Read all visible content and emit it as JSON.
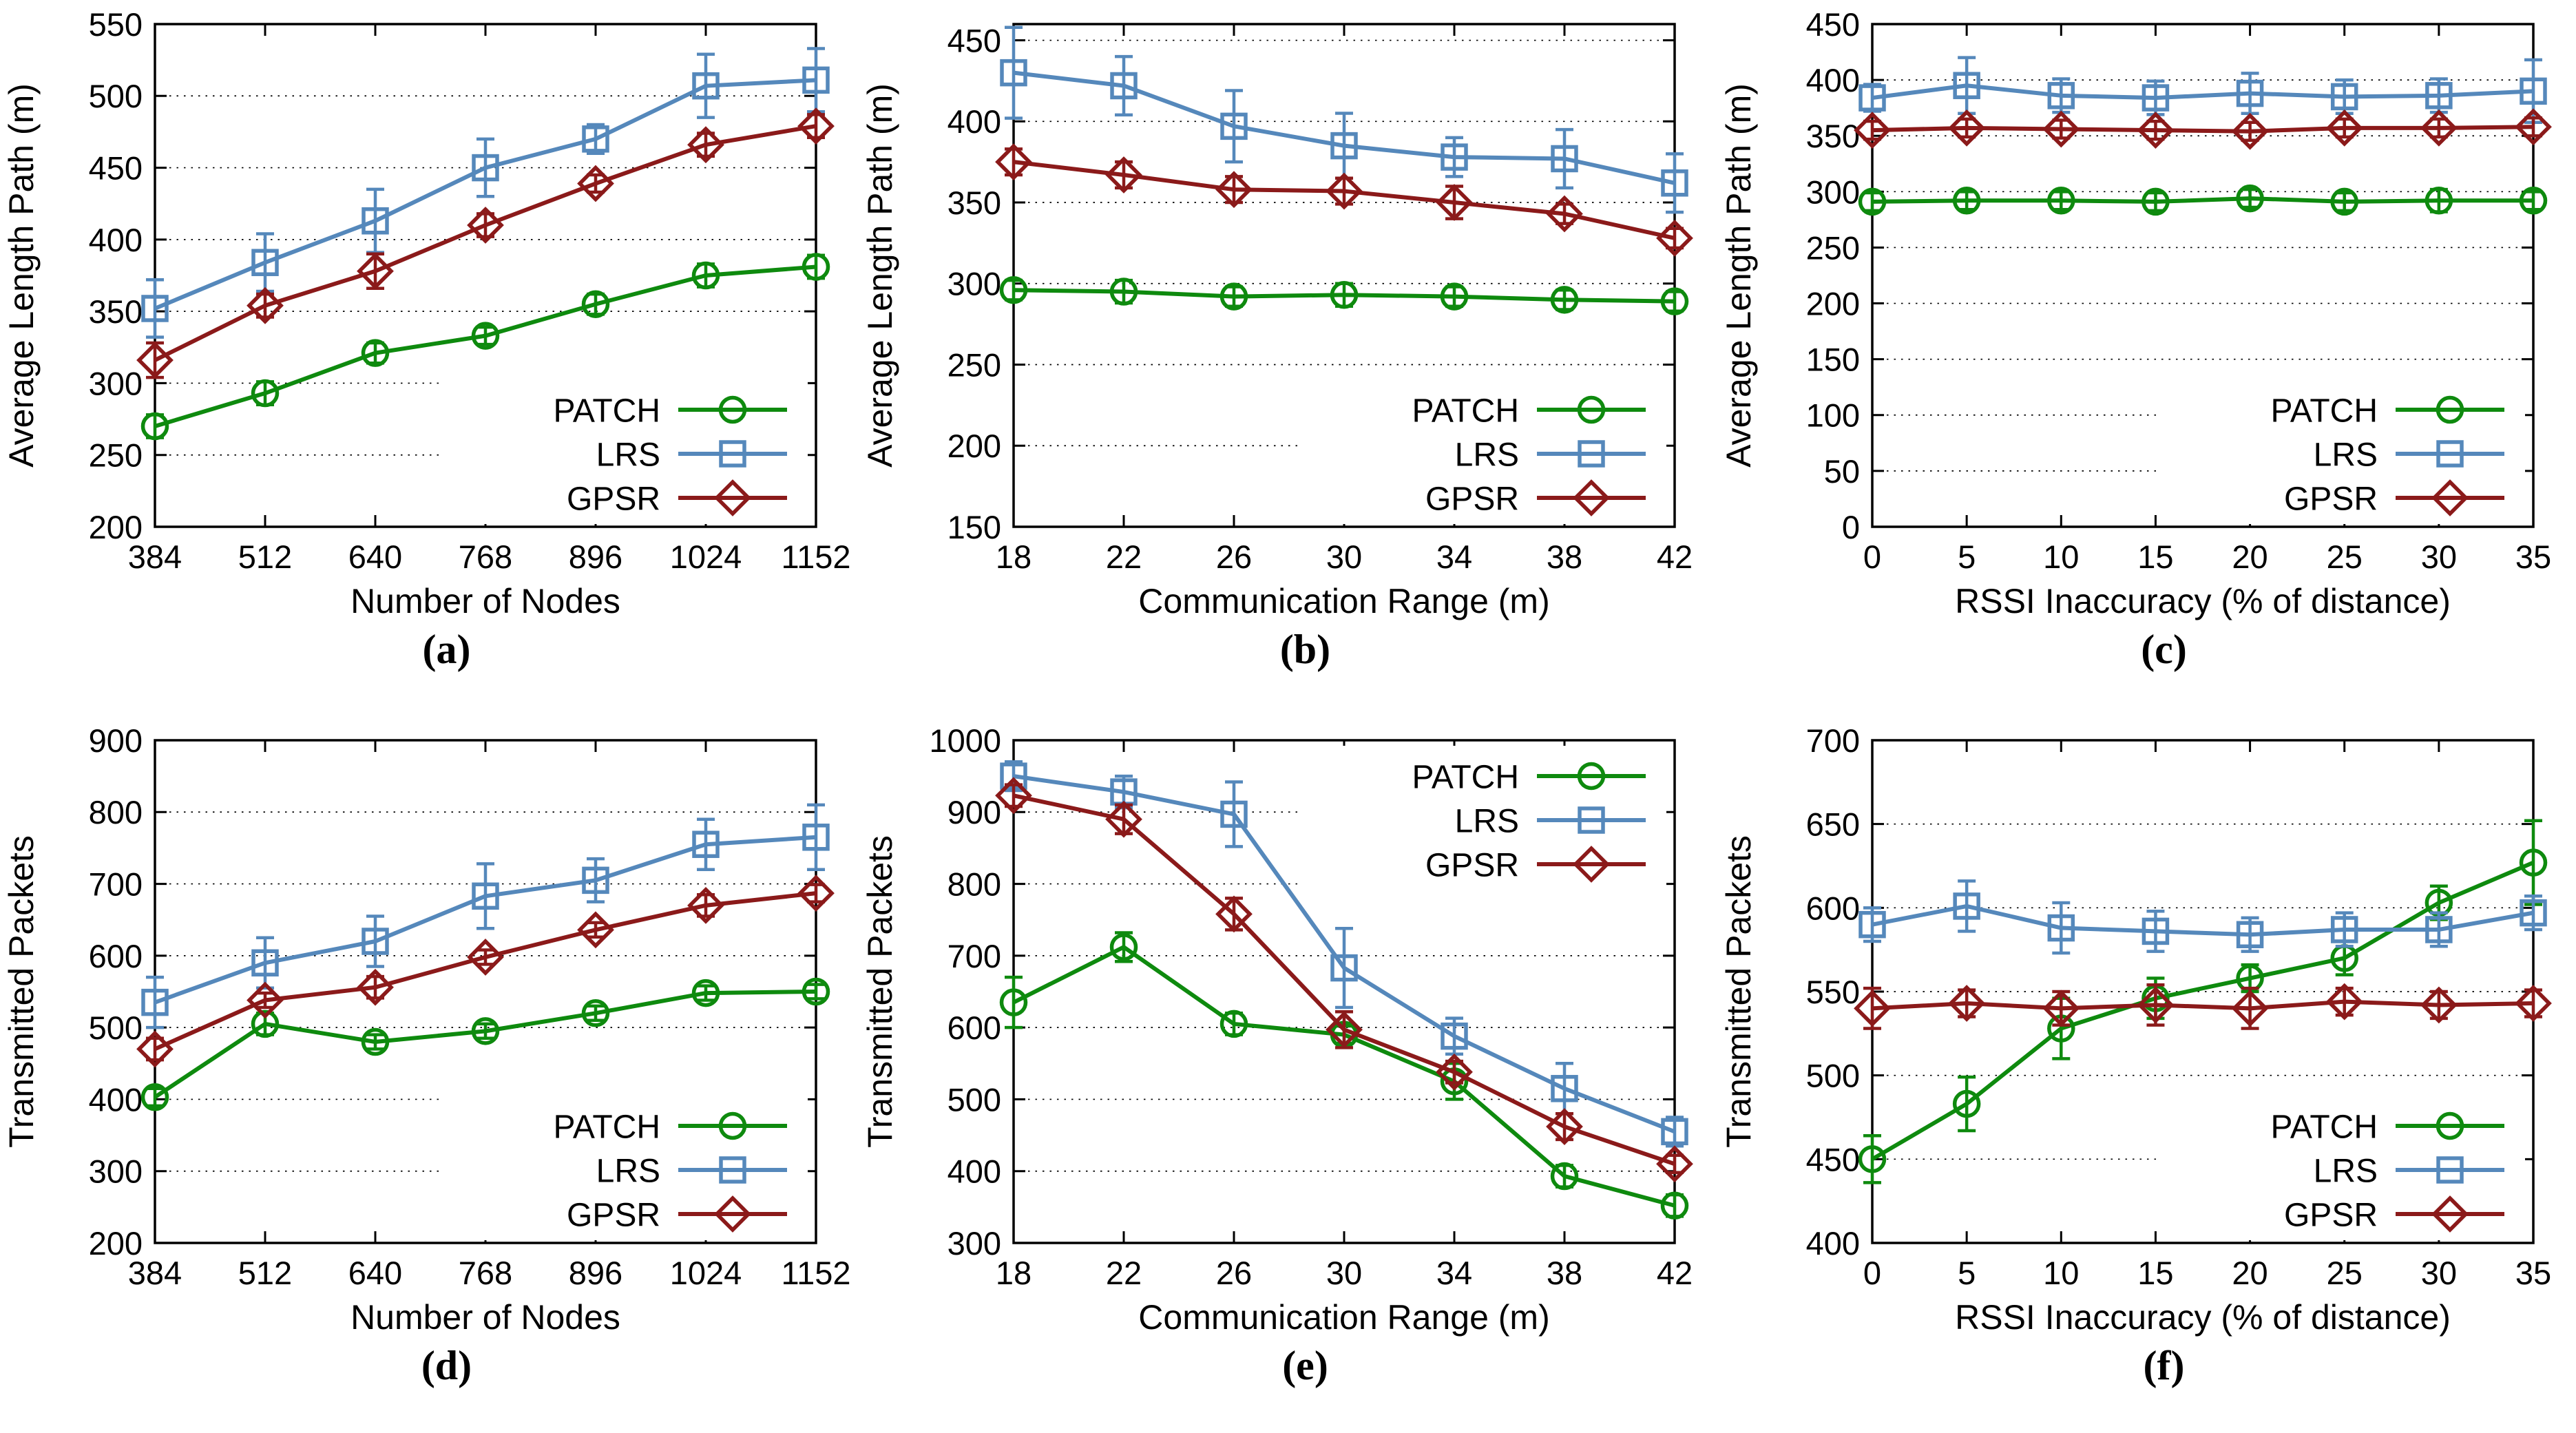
{
  "figure": {
    "background": "#ffffff",
    "series_colors": {
      "PATCH": "#0e8a0e",
      "LRS": "#5588bb",
      "GPSR": "#8b1a1a"
    }
  },
  "chart_data": [
    {
      "id": "a",
      "type": "line",
      "caption": "(a)",
      "xlabel": "Number of Nodes",
      "ylabel": "Average Length Path (m)",
      "x": [
        384,
        512,
        640,
        768,
        896,
        1024,
        1152
      ],
      "ylim": [
        200,
        550
      ],
      "yticks": [
        200,
        250,
        300,
        350,
        400,
        450,
        500,
        550
      ],
      "grid": true,
      "legend_pos": "bottom-right",
      "series": [
        {
          "name": "PATCH",
          "marker": "circle",
          "color": "#0e8a0e",
          "values": [
            270,
            293,
            321,
            333,
            355,
            375,
            381
          ],
          "errors": [
            8,
            8,
            7,
            6,
            7,
            8,
            8
          ]
        },
        {
          "name": "LRS",
          "marker": "square",
          "color": "#5588bb",
          "values": [
            352,
            384,
            413,
            450,
            470,
            507,
            511
          ],
          "errors": [
            20,
            20,
            22,
            20,
            10,
            22,
            22
          ]
        },
        {
          "name": "GPSR",
          "marker": "diamond",
          "color": "#8b1a1a",
          "values": [
            316,
            354,
            378,
            410,
            439,
            466,
            479
          ],
          "errors": [
            12,
            8,
            12,
            8,
            6,
            8,
            8
          ]
        }
      ]
    },
    {
      "id": "b",
      "type": "line",
      "caption": "(b)",
      "xlabel": "Communication Range (m)",
      "ylabel": "Average Length Path (m)",
      "x": [
        18,
        22,
        26,
        30,
        34,
        38,
        42
      ],
      "ylim": [
        150,
        460
      ],
      "yticks": [
        150,
        200,
        250,
        300,
        350,
        400,
        450
      ],
      "grid": true,
      "legend_pos": "bottom-right",
      "series": [
        {
          "name": "PATCH",
          "marker": "circle",
          "color": "#0e8a0e",
          "values": [
            296,
            295,
            292,
            293,
            292,
            290,
            289
          ],
          "errors": [
            6,
            7,
            6,
            7,
            6,
            6,
            6
          ]
        },
        {
          "name": "LRS",
          "marker": "square",
          "color": "#5588bb",
          "values": [
            430,
            422,
            397,
            385,
            378,
            377,
            362
          ],
          "errors": [
            28,
            18,
            22,
            20,
            12,
            18,
            18
          ]
        },
        {
          "name": "GPSR",
          "marker": "diamond",
          "color": "#8b1a1a",
          "values": [
            375,
            367,
            358,
            357,
            350,
            343,
            328
          ],
          "errors": [
            8,
            8,
            8,
            8,
            10,
            6,
            6
          ]
        }
      ]
    },
    {
      "id": "c",
      "type": "line",
      "caption": "(c)",
      "xlabel": "RSSI Inaccuracy (% of distance)",
      "ylabel": "Average Length Path (m)",
      "x": [
        0,
        5,
        10,
        15,
        20,
        25,
        30,
        35
      ],
      "ylim": [
        0,
        450
      ],
      "yticks": [
        0,
        50,
        100,
        150,
        200,
        250,
        300,
        350,
        400,
        450
      ],
      "grid": true,
      "legend_pos": "bottom-right",
      "series": [
        {
          "name": "PATCH",
          "marker": "circle",
          "color": "#0e8a0e",
          "values": [
            291,
            292,
            292,
            291,
            294,
            291,
            292,
            292
          ],
          "errors": [
            8,
            8,
            8,
            8,
            8,
            8,
            10,
            8
          ]
        },
        {
          "name": "LRS",
          "marker": "square",
          "color": "#5588bb",
          "values": [
            384,
            395,
            386,
            384,
            388,
            385,
            386,
            390
          ],
          "errors": [
            12,
            25,
            15,
            15,
            18,
            15,
            15,
            28
          ]
        },
        {
          "name": "GPSR",
          "marker": "diamond",
          "color": "#8b1a1a",
          "values": [
            355,
            357,
            356,
            355,
            354,
            357,
            357,
            358
          ],
          "errors": [
            8,
            8,
            8,
            8,
            8,
            8,
            8,
            8
          ]
        }
      ]
    },
    {
      "id": "d",
      "type": "line",
      "caption": "(d)",
      "xlabel": "Number of Nodes",
      "ylabel": "Transmitted Packets",
      "x": [
        384,
        512,
        640,
        768,
        896,
        1024,
        1152
      ],
      "ylim": [
        200,
        900
      ],
      "yticks": [
        200,
        300,
        400,
        500,
        600,
        700,
        800,
        900
      ],
      "grid": true,
      "legend_pos": "bottom-right",
      "series": [
        {
          "name": "PATCH",
          "marker": "circle",
          "color": "#0e8a0e",
          "values": [
            403,
            505,
            480,
            495,
            520,
            548,
            550
          ],
          "errors": [
            12,
            15,
            10,
            10,
            10,
            10,
            10
          ]
        },
        {
          "name": "LRS",
          "marker": "square",
          "color": "#5588bb",
          "values": [
            535,
            590,
            620,
            683,
            705,
            755,
            765
          ],
          "errors": [
            35,
            35,
            35,
            45,
            30,
            35,
            45
          ]
        },
        {
          "name": "GPSR",
          "marker": "diamond",
          "color": "#8b1a1a",
          "values": [
            470,
            538,
            556,
            598,
            636,
            670,
            687
          ],
          "errors": [
            15,
            10,
            15,
            10,
            10,
            15,
            12
          ]
        }
      ]
    },
    {
      "id": "e",
      "type": "line",
      "caption": "(e)",
      "xlabel": "Communication Range (m)",
      "ylabel": "Transmitted Packets",
      "x": [
        18,
        22,
        26,
        30,
        34,
        38,
        42
      ],
      "ylim": [
        300,
        1000
      ],
      "yticks": [
        300,
        400,
        500,
        600,
        700,
        800,
        900,
        1000
      ],
      "grid": true,
      "legend_pos": "top-right",
      "series": [
        {
          "name": "PATCH",
          "marker": "circle",
          "color": "#0e8a0e",
          "values": [
            635,
            712,
            605,
            590,
            525,
            393,
            352
          ],
          "errors": [
            35,
            20,
            15,
            12,
            25,
            15,
            15
          ]
        },
        {
          "name": "LRS",
          "marker": "square",
          "color": "#5588bb",
          "values": [
            950,
            928,
            897,
            683,
            588,
            515,
            455
          ],
          "errors": [
            20,
            22,
            45,
            55,
            25,
            35,
            20
          ]
        },
        {
          "name": "GPSR",
          "marker": "diamond",
          "color": "#8b1a1a",
          "values": [
            923,
            890,
            758,
            597,
            538,
            462,
            410
          ],
          "errors": [
            15,
            20,
            22,
            25,
            15,
            18,
            12
          ]
        }
      ]
    },
    {
      "id": "f",
      "type": "line",
      "caption": "(f)",
      "xlabel": "RSSI Inaccuracy (% of distance)",
      "ylabel": "Transmitted Packets",
      "x": [
        0,
        5,
        10,
        15,
        20,
        25,
        30,
        35
      ],
      "ylim": [
        400,
        700
      ],
      "yticks": [
        400,
        450,
        500,
        550,
        600,
        650,
        700
      ],
      "grid": true,
      "legend_pos": "bottom-right",
      "series": [
        {
          "name": "PATCH",
          "marker": "circle",
          "color": "#0e8a0e",
          "values": [
            450,
            483,
            528,
            546,
            558,
            570,
            603,
            627
          ],
          "errors": [
            14,
            16,
            18,
            12,
            8,
            10,
            10,
            25
          ]
        },
        {
          "name": "LRS",
          "marker": "square",
          "color": "#5588bb",
          "values": [
            590,
            601,
            588,
            586,
            584,
            587,
            587,
            597
          ],
          "errors": [
            10,
            15,
            15,
            12,
            10,
            10,
            10,
            10
          ]
        },
        {
          "name": "GPSR",
          "marker": "diamond",
          "color": "#8b1a1a",
          "values": [
            540,
            543,
            540,
            542,
            540,
            544,
            542,
            543
          ],
          "errors": [
            12,
            8,
            10,
            12,
            12,
            8,
            8,
            8
          ]
        }
      ]
    }
  ]
}
